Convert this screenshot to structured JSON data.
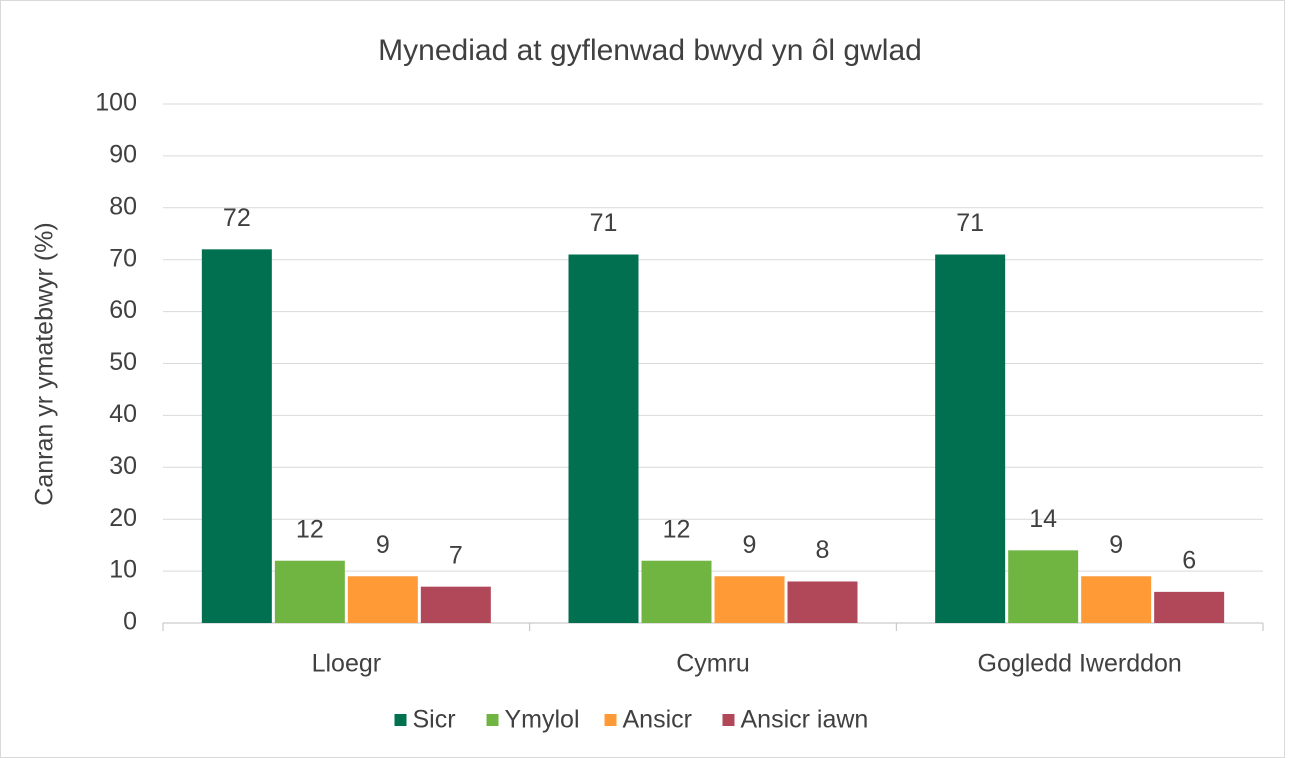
{
  "chart_data": {
    "type": "bar",
    "title": "Mynediad at gyflenwad bwyd yn ôl gwlad",
    "y_label": "Canran yr ymatebwyr (%)",
    "categories": [
      "Lloegr",
      "Cymru",
      "Gogledd Iwerddon"
    ],
    "series": [
      {
        "name": "Sicr",
        "color": "#007050",
        "values": [
          72,
          71,
          71
        ]
      },
      {
        "name": "Ymylol",
        "color": "#70b541",
        "values": [
          12,
          12,
          14
        ]
      },
      {
        "name": "Ansicr",
        "color": "#ff9a36",
        "values": [
          9,
          9,
          9
        ]
      },
      {
        "name": "Ansicr iawn",
        "color": "#b0485a",
        "values": [
          7,
          8,
          6
        ]
      }
    ],
    "ylim": [
      0,
      100
    ],
    "yticks": [
      0,
      10,
      20,
      30,
      40,
      50,
      60,
      70,
      80,
      90,
      100
    ],
    "grid": true,
    "legend": "bottom"
  }
}
